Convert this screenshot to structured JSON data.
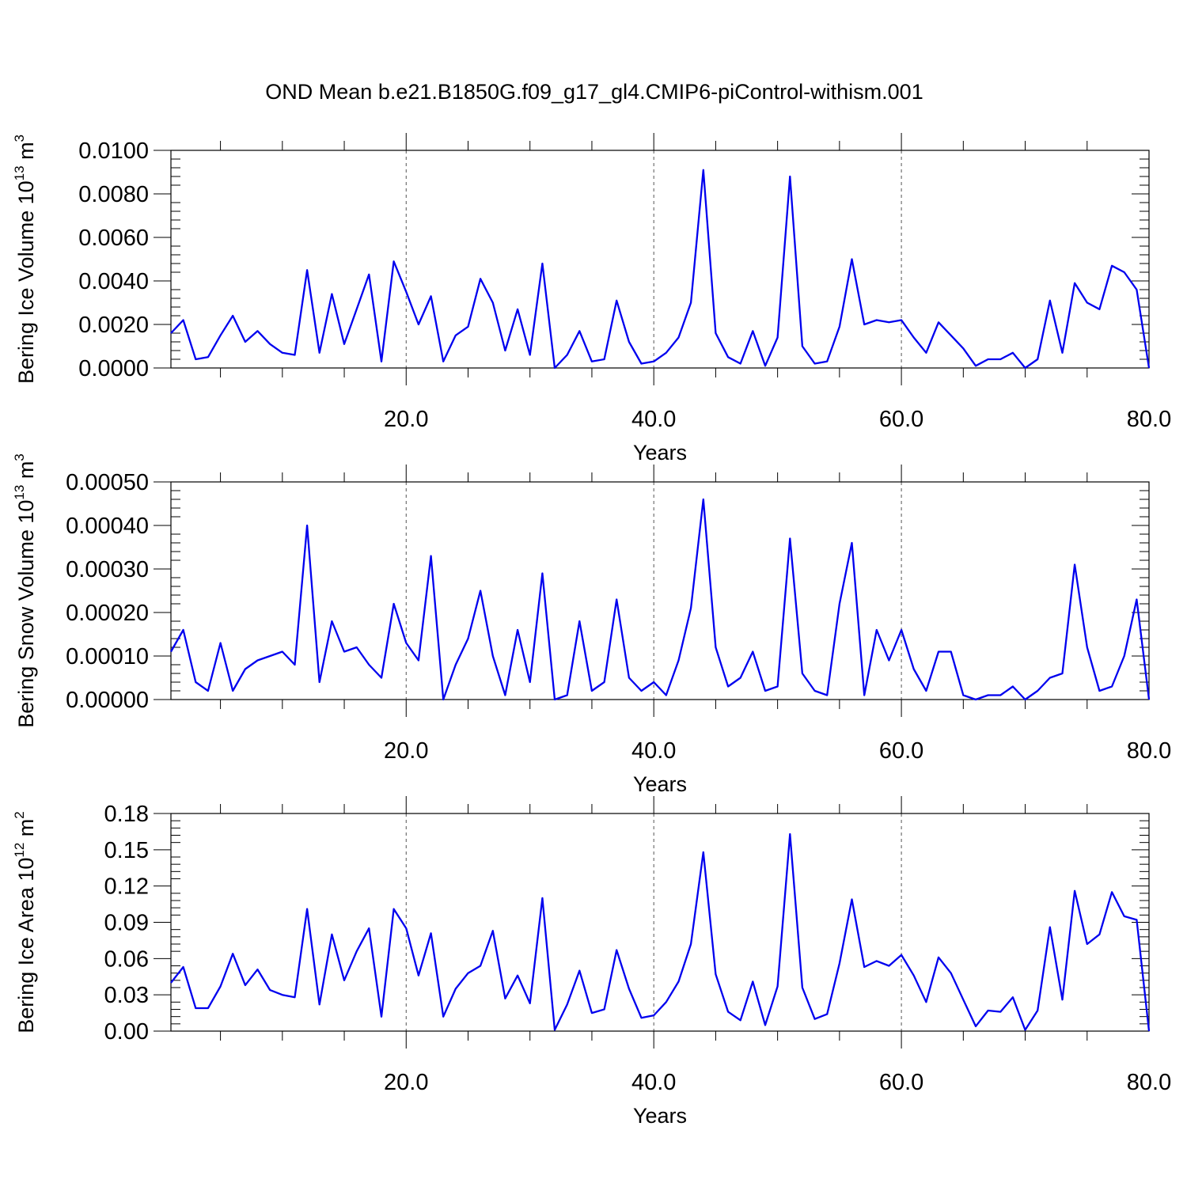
{
  "title": "OND Mean b.e21.B1850G.f09_g17_gl4.CMIP6-piControl-withism.001",
  "colors": {
    "line": "#0000ee",
    "frame": "#000000",
    "grid": "#555555"
  },
  "chart_data": [
    {
      "type": "line",
      "xlabel": "Years",
      "ylabel": {
        "text": "Bering Ice Volume 10",
        "exp": "13",
        "unit": " m",
        "unit_exp": "3"
      },
      "xlim": [
        1,
        80
      ],
      "ylim": [
        0,
        0.01
      ],
      "x_ticks": [
        20,
        40,
        60,
        80
      ],
      "x_tick_labels": [
        "20.0",
        "40.0",
        "60.0",
        "80.0"
      ],
      "y_ticks": [
        0,
        0.002,
        0.004,
        0.006,
        0.008,
        0.01
      ],
      "y_tick_labels": [
        "0.0000",
        "0.0020",
        "0.0040",
        "0.0060",
        "0.0080",
        "0.0100"
      ],
      "grid": "x dashed",
      "x": [
        1,
        2,
        3,
        4,
        5,
        6,
        7,
        8,
        9,
        10,
        11,
        12,
        13,
        14,
        15,
        16,
        17,
        18,
        19,
        20,
        21,
        22,
        23,
        24,
        25,
        26,
        27,
        28,
        29,
        30,
        31,
        32,
        33,
        34,
        35,
        36,
        37,
        38,
        39,
        40,
        41,
        42,
        43,
        44,
        45,
        46,
        47,
        48,
        49,
        50,
        51,
        52,
        53,
        54,
        55,
        56,
        57,
        58,
        59,
        60,
        61,
        62,
        63,
        64,
        65,
        66,
        67,
        68,
        69,
        70,
        71,
        72,
        73,
        74,
        75,
        76,
        77,
        78,
        79,
        80
      ],
      "values": [
        0.0016,
        0.0022,
        0.0004,
        0.0005,
        0.0015,
        0.0024,
        0.0012,
        0.0017,
        0.0011,
        0.0007,
        0.0006,
        0.0045,
        0.0007,
        0.0034,
        0.0011,
        0.0027,
        0.0043,
        0.0003,
        0.0049,
        0.0035,
        0.002,
        0.0033,
        0.0003,
        0.0015,
        0.0019,
        0.0041,
        0.003,
        0.0008,
        0.0027,
        0.0006,
        0.0048,
        0.0,
        0.0006,
        0.0017,
        0.0003,
        0.0004,
        0.0031,
        0.0012,
        0.0002,
        0.0003,
        0.0007,
        0.0014,
        0.003,
        0.0091,
        0.0016,
        0.0005,
        0.0002,
        0.0017,
        0.0001,
        0.0014,
        0.0088,
        0.001,
        0.0002,
        0.0003,
        0.0019,
        0.005,
        0.002,
        0.0022,
        0.0021,
        0.0022,
        0.0014,
        0.0007,
        0.0021,
        0.0015,
        0.0009,
        0.0001,
        0.0004,
        0.0004,
        0.0007,
        0.0,
        0.0004,
        0.0031,
        0.0007,
        0.0039,
        0.003,
        0.0027,
        0.0047,
        0.0044,
        0.0036,
        0.0
      ]
    },
    {
      "type": "line",
      "xlabel": "Years",
      "ylabel": {
        "text": "Bering Snow Volume 10",
        "exp": "13",
        "unit": " m",
        "unit_exp": "3"
      },
      "xlim": [
        1,
        80
      ],
      "ylim": [
        0,
        0.0005
      ],
      "x_ticks": [
        20,
        40,
        60,
        80
      ],
      "x_tick_labels": [
        "20.0",
        "40.0",
        "60.0",
        "80.0"
      ],
      "y_ticks": [
        0,
        0.0001,
        0.0002,
        0.0003,
        0.0004,
        0.0005
      ],
      "y_tick_labels": [
        "0.00000",
        "0.00010",
        "0.00020",
        "0.00030",
        "0.00040",
        "0.00050"
      ],
      "grid": "x dashed",
      "x": [
        1,
        2,
        3,
        4,
        5,
        6,
        7,
        8,
        9,
        10,
        11,
        12,
        13,
        14,
        15,
        16,
        17,
        18,
        19,
        20,
        21,
        22,
        23,
        24,
        25,
        26,
        27,
        28,
        29,
        30,
        31,
        32,
        33,
        34,
        35,
        36,
        37,
        38,
        39,
        40,
        41,
        42,
        43,
        44,
        45,
        46,
        47,
        48,
        49,
        50,
        51,
        52,
        53,
        54,
        55,
        56,
        57,
        58,
        59,
        60,
        61,
        62,
        63,
        64,
        65,
        66,
        67,
        68,
        69,
        70,
        71,
        72,
        73,
        74,
        75,
        76,
        77,
        78,
        79,
        80
      ],
      "values": [
        0.00011,
        0.00016,
        4e-05,
        2e-05,
        0.00013,
        2e-05,
        7e-05,
        9e-05,
        0.0001,
        0.00011,
        8e-05,
        0.0004,
        4e-05,
        0.00018,
        0.00011,
        0.00012,
        8e-05,
        5e-05,
        0.00022,
        0.00013,
        9e-05,
        0.00033,
        0.0,
        8e-05,
        0.00014,
        0.00025,
        0.0001,
        1e-05,
        0.00016,
        4e-05,
        0.00029,
        0.0,
        1e-05,
        0.00018,
        2e-05,
        4e-05,
        0.00023,
        5e-05,
        2e-05,
        4e-05,
        1e-05,
        9e-05,
        0.00021,
        0.00046,
        0.00012,
        3e-05,
        5e-05,
        0.00011,
        2e-05,
        3e-05,
        0.00037,
        6e-05,
        2e-05,
        1e-05,
        0.00022,
        0.00036,
        1e-05,
        0.00016,
        9e-05,
        0.00016,
        7e-05,
        2e-05,
        0.00011,
        0.00011,
        1e-05,
        0.0,
        1e-05,
        1e-05,
        3e-05,
        0.0,
        2e-05,
        5e-05,
        6e-05,
        0.00031,
        0.00012,
        2e-05,
        3e-05,
        0.0001,
        0.00023,
        0.0
      ]
    },
    {
      "type": "line",
      "xlabel": "Years",
      "ylabel": {
        "text": "Bering Ice Area 10",
        "exp": "12",
        "unit": " m",
        "unit_exp": "2"
      },
      "xlim": [
        1,
        80
      ],
      "ylim": [
        0,
        0.18
      ],
      "x_ticks": [
        20,
        40,
        60,
        80
      ],
      "x_tick_labels": [
        "20.0",
        "40.0",
        "60.0",
        "80.0"
      ],
      "y_ticks": [
        0,
        0.03,
        0.06,
        0.09,
        0.12,
        0.15,
        0.18
      ],
      "y_tick_labels": [
        "0.00",
        "0.03",
        "0.06",
        "0.09",
        "0.12",
        "0.15",
        "0.18"
      ],
      "grid": "x dashed",
      "x": [
        1,
        2,
        3,
        4,
        5,
        6,
        7,
        8,
        9,
        10,
        11,
        12,
        13,
        14,
        15,
        16,
        17,
        18,
        19,
        20,
        21,
        22,
        23,
        24,
        25,
        26,
        27,
        28,
        29,
        30,
        31,
        32,
        33,
        34,
        35,
        36,
        37,
        38,
        39,
        40,
        41,
        42,
        43,
        44,
        45,
        46,
        47,
        48,
        49,
        50,
        51,
        52,
        53,
        54,
        55,
        56,
        57,
        58,
        59,
        60,
        61,
        62,
        63,
        64,
        65,
        66,
        67,
        68,
        69,
        70,
        71,
        72,
        73,
        74,
        75,
        76,
        77,
        78,
        79,
        80
      ],
      "values": [
        0.04,
        0.053,
        0.019,
        0.019,
        0.037,
        0.064,
        0.038,
        0.051,
        0.034,
        0.03,
        0.028,
        0.101,
        0.022,
        0.08,
        0.042,
        0.066,
        0.085,
        0.012,
        0.101,
        0.085,
        0.046,
        0.081,
        0.012,
        0.035,
        0.048,
        0.054,
        0.083,
        0.027,
        0.046,
        0.023,
        0.11,
        0.001,
        0.022,
        0.05,
        0.015,
        0.018,
        0.067,
        0.035,
        0.011,
        0.013,
        0.024,
        0.041,
        0.072,
        0.148,
        0.047,
        0.016,
        0.009,
        0.041,
        0.005,
        0.037,
        0.163,
        0.036,
        0.01,
        0.014,
        0.056,
        0.109,
        0.053,
        0.058,
        0.054,
        0.063,
        0.046,
        0.024,
        0.061,
        0.048,
        0.026,
        0.004,
        0.017,
        0.016,
        0.028,
        0.001,
        0.017,
        0.086,
        0.026,
        0.116,
        0.072,
        0.08,
        0.115,
        0.095,
        0.092,
        0.0
      ]
    }
  ]
}
